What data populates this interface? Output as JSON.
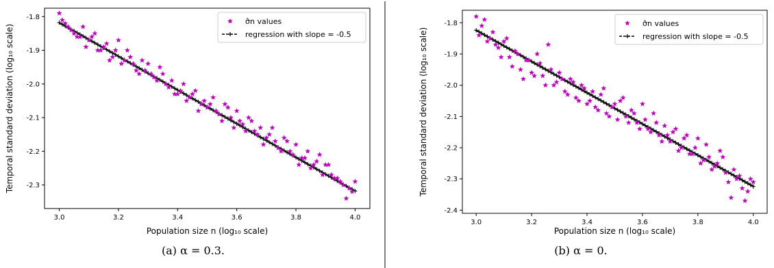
{
  "chart_data": [
    {
      "type": "scatter",
      "caption": "(a) α = 0.3.",
      "xlabel": "Population size n (log₁₀ scale)",
      "ylabel": "Temporal standard deviation  (log₁₀ scale)",
      "xlim": [
        2.95,
        4.05
      ],
      "ylim": [
        -2.37,
        -1.775
      ],
      "xticks": [
        3.0,
        3.2,
        3.4,
        3.6,
        3.8,
        4.0
      ],
      "xtick_labels": [
        "3.0",
        "3.2",
        "3.4",
        "3.6",
        "3.8",
        "4.0"
      ],
      "yticks": [
        -1.8,
        -1.9,
        -2.0,
        -2.1,
        -2.2,
        -2.3
      ],
      "ytick_labels": [
        "-1.8",
        "-1.9",
        "-2.0",
        "-2.1",
        "-2.2",
        "-2.3"
      ],
      "legend_position": "top-right",
      "series": [
        {
          "name": "σ̂n values",
          "marker": "star",
          "color": "#c000c0",
          "x": [
            3.0,
            3.02,
            3.04,
            3.06,
            3.08,
            3.1,
            3.12,
            3.14,
            3.16,
            3.18,
            3.2,
            3.22,
            3.24,
            3.26,
            3.28,
            3.3,
            3.32,
            3.34,
            3.36,
            3.38,
            3.4,
            3.42,
            3.44,
            3.46,
            3.48,
            3.5,
            3.52,
            3.54,
            3.56,
            3.58,
            3.6,
            3.62,
            3.64,
            3.66,
            3.68,
            3.7,
            3.72,
            3.74,
            3.76,
            3.78,
            3.8,
            3.82,
            3.84,
            3.86,
            3.88,
            3.9,
            3.92,
            3.94,
            3.96,
            3.98,
            4.0,
            3.01,
            3.03,
            3.05,
            3.07,
            3.09,
            3.11,
            3.13,
            3.15,
            3.17,
            3.19,
            3.21,
            3.23,
            3.25,
            3.27,
            3.29,
            3.31,
            3.33,
            3.35,
            3.37,
            3.39,
            3.41,
            3.43,
            3.45,
            3.47,
            3.49,
            3.51,
            3.53,
            3.55,
            3.57,
            3.59,
            3.61,
            3.63,
            3.65,
            3.67,
            3.69,
            3.71,
            3.73,
            3.75,
            3.77,
            3.79,
            3.81,
            3.83,
            3.85,
            3.87,
            3.89,
            3.91,
            3.93,
            3.95,
            3.97,
            3.99
          ],
          "y": [
            -1.79,
            -1.82,
            -1.84,
            -1.86,
            -1.83,
            -1.87,
            -1.85,
            -1.9,
            -1.88,
            -1.92,
            -1.87,
            -1.93,
            -1.92,
            -1.96,
            -1.93,
            -1.94,
            -1.98,
            -1.95,
            -2.0,
            -1.99,
            -2.03,
            -2.0,
            -2.04,
            -2.02,
            -2.06,
            -2.07,
            -2.04,
            -2.09,
            -2.06,
            -2.1,
            -2.08,
            -2.12,
            -2.1,
            -2.14,
            -2.13,
            -2.16,
            -2.13,
            -2.19,
            -2.16,
            -2.2,
            -2.18,
            -2.22,
            -2.2,
            -2.24,
            -2.21,
            -2.24,
            -2.27,
            -2.28,
            -2.3,
            -2.31,
            -2.29,
            -1.81,
            -1.83,
            -1.85,
            -1.86,
            -1.89,
            -1.86,
            -1.9,
            -1.89,
            -1.93,
            -1.9,
            -1.94,
            -1.9,
            -1.94,
            -1.97,
            -1.96,
            -1.97,
            -1.99,
            -1.97,
            -2.01,
            -2.03,
            -2.02,
            -2.05,
            -2.03,
            -2.08,
            -2.05,
            -2.06,
            -2.08,
            -2.11,
            -2.07,
            -2.13,
            -2.11,
            -2.14,
            -2.11,
            -2.15,
            -2.18,
            -2.15,
            -2.17,
            -2.2,
            -2.17,
            -2.21,
            -2.24,
            -2.22,
            -2.25,
            -2.23,
            -2.27,
            -2.24,
            -2.28,
            -2.29,
            -2.34,
            -2.32
          ]
        },
        {
          "name": "regression with slope = -0.5",
          "marker": "plus-line",
          "color": "#000000",
          "x_start": 3.0,
          "x_end": 4.0,
          "slope": -0.5,
          "intercept": -0.318
        }
      ]
    },
    {
      "type": "scatter",
      "caption": "(b) α = 0.",
      "xlabel": "Population size n (log₁₀ scale)",
      "ylabel": "Temporal standard deviation  (log₁₀ scale)",
      "xlim": [
        2.95,
        4.05
      ],
      "ylim": [
        -2.41,
        -1.76
      ],
      "xticks": [
        3.0,
        3.2,
        3.4,
        3.6,
        3.8,
        4.0
      ],
      "xtick_labels": [
        "3.0",
        "3.2",
        "3.4",
        "3.6",
        "3.8",
        "4.0"
      ],
      "yticks": [
        -1.8,
        -1.9,
        -2.0,
        -2.1,
        -2.2,
        -2.3,
        -2.4
      ],
      "ytick_labels": [
        "-1.8",
        "-1.9",
        "-2.0",
        "-2.1",
        "-2.2",
        "-2.3",
        "-2.4"
      ],
      "legend_position": "top-right",
      "series": [
        {
          "name": "σ̂n values",
          "marker": "star",
          "color": "#c000c0",
          "x": [
            3.0,
            3.02,
            3.04,
            3.06,
            3.08,
            3.1,
            3.12,
            3.14,
            3.16,
            3.18,
            3.2,
            3.22,
            3.24,
            3.26,
            3.28,
            3.3,
            3.32,
            3.34,
            3.36,
            3.38,
            3.4,
            3.42,
            3.44,
            3.46,
            3.48,
            3.5,
            3.52,
            3.54,
            3.56,
            3.58,
            3.6,
            3.62,
            3.64,
            3.66,
            3.68,
            3.7,
            3.72,
            3.74,
            3.76,
            3.78,
            3.8,
            3.82,
            3.84,
            3.86,
            3.88,
            3.9,
            3.92,
            3.94,
            3.96,
            3.98,
            4.0,
            3.01,
            3.03,
            3.05,
            3.07,
            3.09,
            3.11,
            3.13,
            3.15,
            3.17,
            3.19,
            3.21,
            3.23,
            3.25,
            3.27,
            3.29,
            3.31,
            3.33,
            3.35,
            3.37,
            3.39,
            3.41,
            3.43,
            3.45,
            3.47,
            3.49,
            3.51,
            3.53,
            3.55,
            3.57,
            3.59,
            3.61,
            3.63,
            3.65,
            3.67,
            3.69,
            3.71,
            3.73,
            3.75,
            3.77,
            3.79,
            3.81,
            3.83,
            3.85,
            3.87,
            3.89,
            3.91,
            3.93,
            3.95,
            3.97,
            3.99
          ],
          "y": [
            -1.78,
            -1.81,
            -1.86,
            -1.83,
            -1.88,
            -1.86,
            -1.91,
            -1.89,
            -1.95,
            -1.92,
            -1.96,
            -1.9,
            -1.97,
            -1.87,
            -2.0,
            -1.96,
            -2.02,
            -1.98,
            -2.04,
            -2.0,
            -2.06,
            -2.02,
            -2.08,
            -2.01,
            -2.1,
            -2.06,
            -2.05,
            -2.1,
            -2.08,
            -2.12,
            -2.06,
            -2.14,
            -2.09,
            -2.16,
            -2.13,
            -2.18,
            -2.14,
            -2.2,
            -2.16,
            -2.22,
            -2.17,
            -2.24,
            -2.23,
            -2.26,
            -2.21,
            -2.28,
            -2.36,
            -2.3,
            -2.33,
            -2.34,
            -2.31,
            -1.84,
            -1.79,
            -1.85,
            -1.87,
            -1.91,
            -1.85,
            -1.94,
            -1.9,
            -1.98,
            -1.92,
            -1.97,
            -1.93,
            -2.0,
            -1.95,
            -1.99,
            -1.98,
            -2.03,
            -1.99,
            -2.05,
            -2.01,
            -2.05,
            -2.07,
            -2.03,
            -2.09,
            -2.07,
            -2.11,
            -2.04,
            -2.12,
            -2.09,
            -2.14,
            -2.11,
            -2.15,
            -2.12,
            -2.18,
            -2.16,
            -2.15,
            -2.21,
            -2.17,
            -2.22,
            -2.2,
            -2.25,
            -2.19,
            -2.27,
            -2.25,
            -2.23,
            -2.31,
            -2.27,
            -2.29,
            -2.37,
            -2.3
          ]
        },
        {
          "name": "regression with slope = -0.5",
          "marker": "plus-line",
          "color": "#000000",
          "x_start": 3.0,
          "x_end": 4.0,
          "slope": -0.5,
          "intercept": -0.324
        }
      ]
    }
  ]
}
